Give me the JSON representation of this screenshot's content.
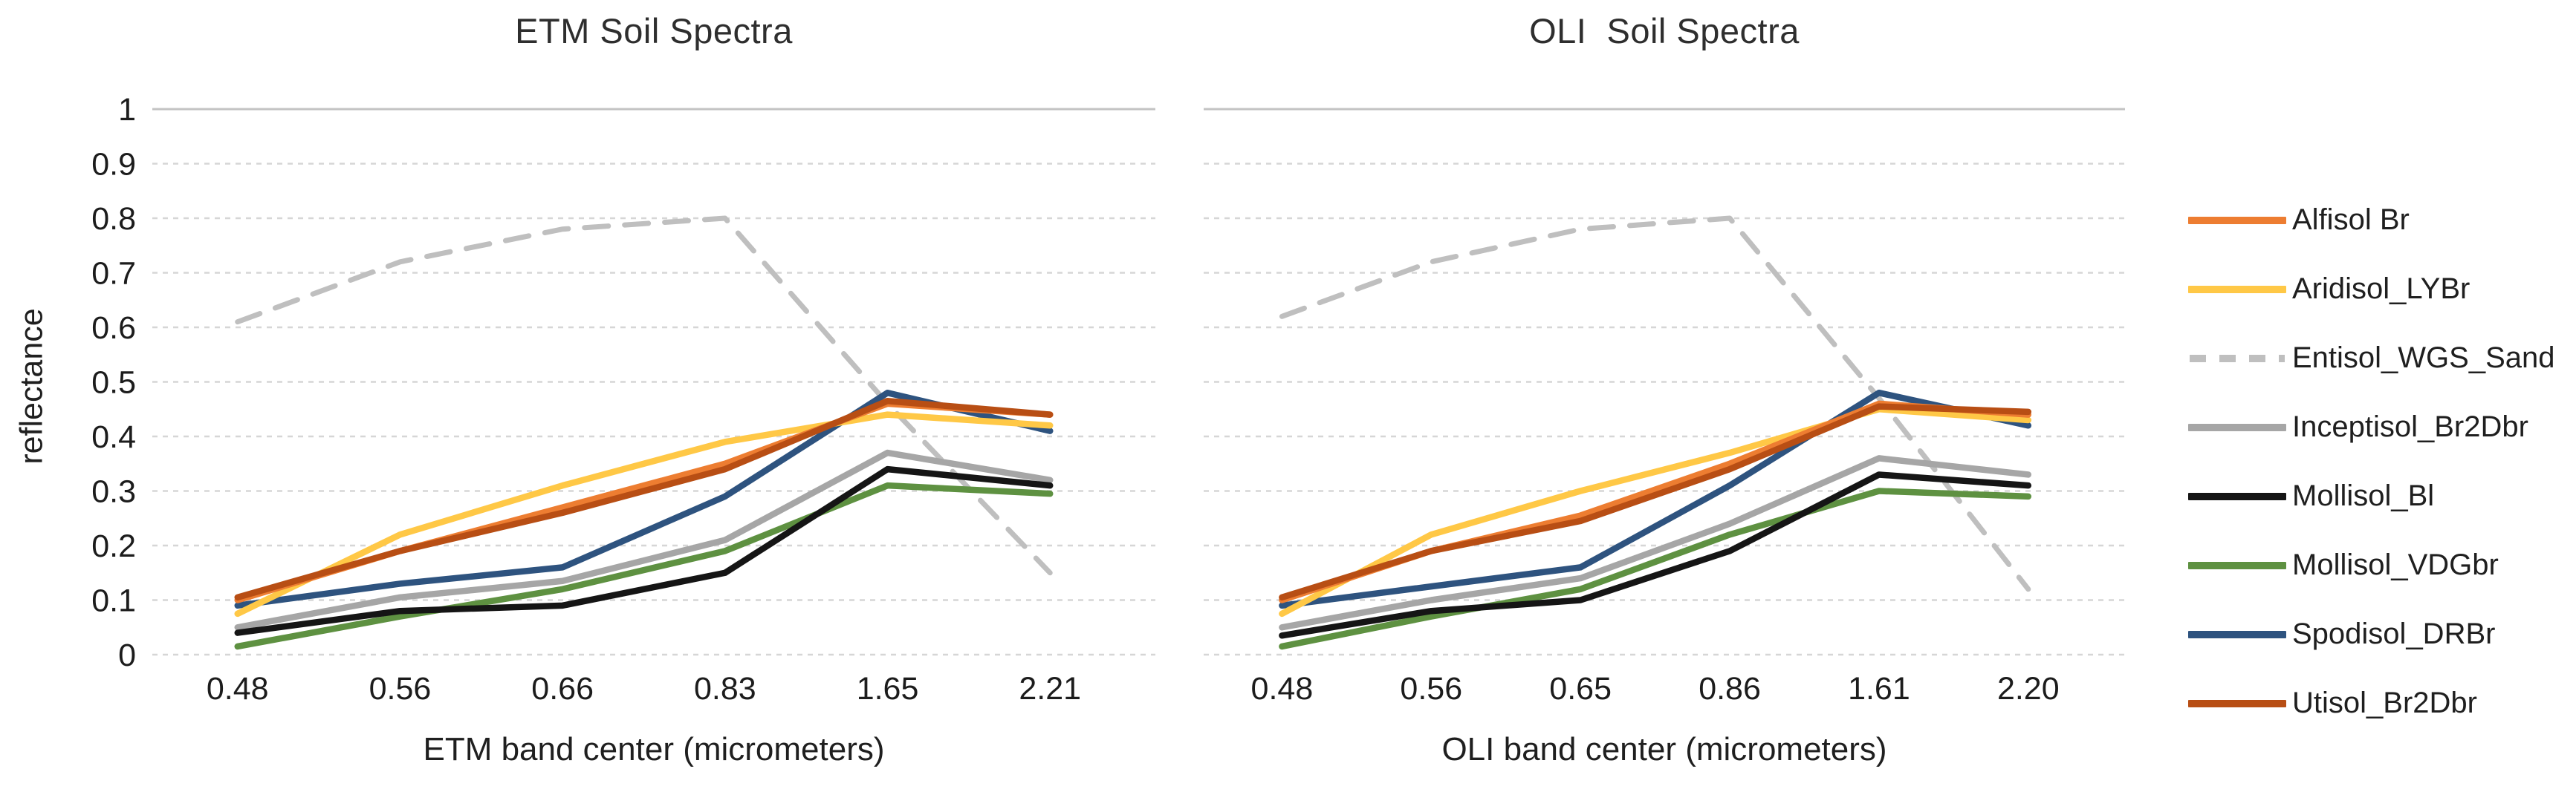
{
  "figure": {
    "y_axis": {
      "title": "reflectance",
      "ticks": [
        "1",
        "0.9",
        "0.8",
        "0.7",
        "0.6",
        "0.5",
        "0.4",
        "0.3",
        "0.2",
        "0.1",
        "0"
      ]
    },
    "legend": {
      "position": "right",
      "items": [
        {
          "label": "Alfisol Br",
          "color": "#ED7D31",
          "dashed": false
        },
        {
          "label": "Aridisol_LYBr",
          "color": "#FFC846",
          "dashed": false
        },
        {
          "label": "Entisol_WGS_Sand",
          "color": "#BFBFBF",
          "dashed": true
        },
        {
          "label": "Inceptisol_Br2Dbr",
          "color": "#A6A6A6",
          "dashed": false
        },
        {
          "label": "Mollisol_Bl",
          "color": "#151515",
          "dashed": false
        },
        {
          "label": "Mollisol_VDGbr",
          "color": "#5E9141",
          "dashed": false
        },
        {
          "label": "Spodisol_DRBr",
          "color": "#2E537F",
          "dashed": false
        },
        {
          "label": "Utisol_Br2Dbr",
          "color": "#B84E14",
          "dashed": false
        }
      ]
    }
  },
  "chart_data": [
    {
      "type": "line",
      "title": "ETM Soil Spectra",
      "xlabel": "ETM band center (micrometers)",
      "ylabel": "reflectance",
      "ylim": [
        0,
        1
      ],
      "grid": true,
      "x": [
        "0.48",
        "0.56",
        "0.66",
        "0.83",
        "1.65",
        "2.21"
      ],
      "series": [
        {
          "name": "Entisol_WGS_Sand",
          "color": "#BFBFBF",
          "dashed": true,
          "values": [
            0.61,
            0.72,
            0.78,
            0.8,
            0.46,
            0.15
          ]
        },
        {
          "name": "Inceptisol_Br2Dbr",
          "color": "#A6A6A6",
          "dashed": false,
          "values": [
            0.05,
            0.105,
            0.135,
            0.21,
            0.37,
            0.32
          ]
        },
        {
          "name": "Mollisol_VDGbr",
          "color": "#5E9141",
          "dashed": false,
          "values": [
            0.015,
            0.07,
            0.12,
            0.19,
            0.31,
            0.295
          ]
        },
        {
          "name": "Mollisol_Bl",
          "color": "#151515",
          "dashed": false,
          "values": [
            0.04,
            0.08,
            0.09,
            0.15,
            0.34,
            0.31
          ]
        },
        {
          "name": "Spodisol_DRBr",
          "color": "#2E537F",
          "dashed": false,
          "values": [
            0.09,
            0.13,
            0.16,
            0.29,
            0.48,
            0.41
          ]
        },
        {
          "name": "Aridisol_LYBr",
          "color": "#FFC846",
          "dashed": false,
          "values": [
            0.075,
            0.22,
            0.31,
            0.39,
            0.44,
            0.42
          ]
        },
        {
          "name": "Alfisol Br",
          "color": "#ED7D31",
          "dashed": false,
          "values": [
            0.1,
            0.19,
            0.27,
            0.35,
            0.46,
            0.44
          ]
        },
        {
          "name": "Utisol_Br2Dbr",
          "color": "#B84E14",
          "dashed": false,
          "values": [
            0.105,
            0.19,
            0.26,
            0.34,
            0.465,
            0.44
          ]
        }
      ]
    },
    {
      "type": "line",
      "title": "OLI  Soil Spectra",
      "xlabel": "OLI band center (micrometers)",
      "ylabel": "reflectance",
      "ylim": [
        0,
        1
      ],
      "grid": true,
      "x": [
        "0.48",
        "0.56",
        "0.65",
        "0.86",
        "1.61",
        "2.20"
      ],
      "series": [
        {
          "name": "Entisol_WGS_Sand",
          "color": "#BFBFBF",
          "dashed": true,
          "values": [
            0.62,
            0.72,
            0.78,
            0.8,
            0.47,
            0.12
          ]
        },
        {
          "name": "Inceptisol_Br2Dbr",
          "color": "#A6A6A6",
          "dashed": false,
          "values": [
            0.05,
            0.1,
            0.14,
            0.24,
            0.36,
            0.33
          ]
        },
        {
          "name": "Mollisol_VDGbr",
          "color": "#5E9141",
          "dashed": false,
          "values": [
            0.015,
            0.07,
            0.12,
            0.22,
            0.3,
            0.29
          ]
        },
        {
          "name": "Mollisol_Bl",
          "color": "#151515",
          "dashed": false,
          "values": [
            0.035,
            0.08,
            0.1,
            0.19,
            0.33,
            0.31
          ]
        },
        {
          "name": "Spodisol_DRBr",
          "color": "#2E537F",
          "dashed": false,
          "values": [
            0.09,
            0.125,
            0.16,
            0.31,
            0.48,
            0.42
          ]
        },
        {
          "name": "Aridisol_LYBr",
          "color": "#FFC846",
          "dashed": false,
          "values": [
            0.075,
            0.22,
            0.3,
            0.37,
            0.45,
            0.43
          ]
        },
        {
          "name": "Alfisol Br",
          "color": "#ED7D31",
          "dashed": false,
          "values": [
            0.1,
            0.19,
            0.255,
            0.35,
            0.46,
            0.44
          ]
        },
        {
          "name": "Utisol_Br2Dbr",
          "color": "#B84E14",
          "dashed": false,
          "values": [
            0.105,
            0.19,
            0.245,
            0.34,
            0.455,
            0.445
          ]
        }
      ]
    }
  ]
}
